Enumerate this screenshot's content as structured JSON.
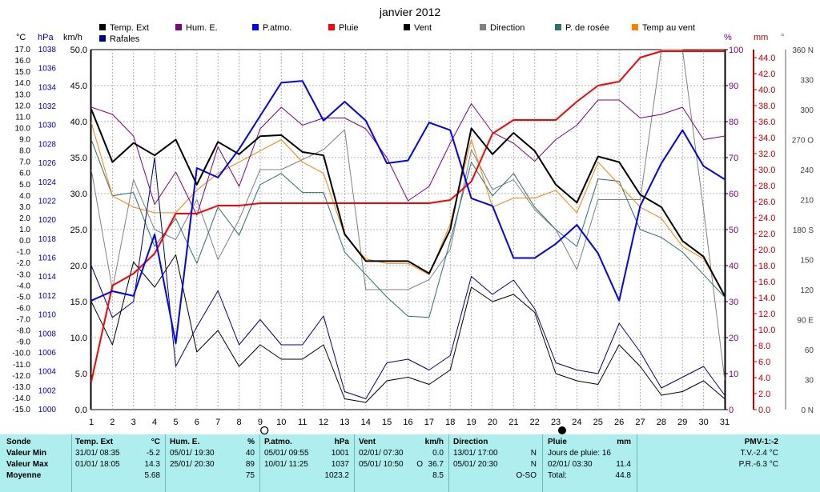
{
  "chart_data": {
    "type": "line",
    "title": "janvier 2012",
    "x": [
      1,
      2,
      3,
      4,
      5,
      6,
      7,
      8,
      9,
      10,
      11,
      12,
      13,
      14,
      15,
      16,
      17,
      18,
      19,
      20,
      21,
      22,
      23,
      24,
      25,
      26,
      27,
      28,
      29,
      30,
      31
    ],
    "axes": {
      "temp": {
        "unit": "°C",
        "min": -15,
        "max": 17,
        "step": 0.5,
        "color": "#000000"
      },
      "press": {
        "unit": "hPa",
        "min": 1000,
        "max": 1038,
        "step": 2,
        "color": "#0000c0"
      },
      "wind": {
        "unit": "km/h",
        "min": 0,
        "max": 50,
        "step": 5,
        "color": "#000000"
      },
      "hum": {
        "unit": "%",
        "min": 0,
        "max": 100,
        "step": 10,
        "color": "#800080"
      },
      "rain": {
        "unit": "mm",
        "min": 0,
        "max": 45,
        "step": 2,
        "color": "#c00000"
      },
      "dir": {
        "unit": "°",
        "ticks": [
          "0 N",
          "30",
          "60",
          "90 E",
          "120",
          "150",
          "180 S",
          "210",
          "240",
          "270 O",
          "300",
          "330",
          "360 N"
        ],
        "color": "#404040"
      }
    },
    "legend": [
      {
        "name": "Temp. Ext",
        "color": "#000000"
      },
      {
        "name": "Rafales",
        "color": "#000080"
      },
      {
        "name": "Hum. E.",
        "color": "#800080"
      },
      {
        "name": "P.atmo.",
        "color": "#0000ff"
      },
      {
        "name": "Pluie",
        "color": "#ff0000"
      },
      {
        "name": "Vent",
        "color": "#000000"
      },
      {
        "name": "Direction",
        "color": "#808080"
      },
      {
        "name": "P. de rosée",
        "color": "#2f6f6f"
      },
      {
        "name": "Temp au vent",
        "color": "#ff8000"
      }
    ],
    "series": [
      {
        "name": "Temp. Ext",
        "axis": "temp",
        "color": "#000000",
        "width": 2,
        "values": [
          11.7,
          7.0,
          8.7,
          7.6,
          9.0,
          5.0,
          8.8,
          7.7,
          9.3,
          9.4,
          7.9,
          7.6,
          0.6,
          -1.8,
          -1.8,
          -1.8,
          -2.9,
          1.0,
          10.0,
          7.7,
          9.6,
          8.0,
          5.0,
          3.4,
          7.5,
          7.0,
          4.1,
          3.0,
          0.0,
          -1.4,
          -4.9
        ]
      },
      {
        "name": "Rafales",
        "axis": "wind",
        "color": "#000080",
        "width": 1,
        "values": [
          20.0,
          12.8,
          15.0,
          35.0,
          6.0,
          11.5,
          16.5,
          9.0,
          12.5,
          9.0,
          9.0,
          13.0,
          2.5,
          1.5,
          6.5,
          7.0,
          5.5,
          7.5,
          18.5,
          16.0,
          18.0,
          14.0,
          6.5,
          5.5,
          5.0,
          12.0,
          8.0,
          3.0,
          4.5,
          6.0,
          2.0
        ]
      },
      {
        "name": "Vent",
        "axis": "wind",
        "color": "#000000",
        "width": 1,
        "values": [
          15.0,
          9.0,
          20.5,
          17.0,
          21.5,
          8.0,
          11.0,
          6.0,
          9.0,
          7.0,
          7.0,
          9.0,
          1.5,
          1.0,
          4.0,
          4.5,
          3.5,
          5.5,
          17.0,
          15.0,
          16.0,
          13.5,
          5.0,
          4.0,
          3.5,
          9.0,
          6.0,
          2.0,
          2.5,
          4.0,
          1.5
        ]
      },
      {
        "name": "Hum. E.",
        "axis": "hum",
        "color": "#800080",
        "width": 1,
        "values": [
          84,
          82,
          76,
          57,
          66,
          54,
          73,
          62,
          78,
          84,
          79,
          81,
          81,
          78,
          70,
          58,
          62,
          74,
          85,
          77,
          74,
          69,
          75,
          79,
          86,
          86,
          81,
          82,
          84,
          75,
          76
        ]
      },
      {
        "name": "P.atmo.",
        "axis": "press",
        "color": "#0000ff",
        "width": 2,
        "values": [
          1011.5,
          1012.5,
          1012.0,
          1018.5,
          1007.0,
          1025.5,
          1024.5,
          1027.5,
          1031.0,
          1034.5,
          1034.7,
          1030.5,
          1032.5,
          1030.5,
          1026.0,
          1026.3,
          1030.3,
          1029.5,
          1022.3,
          1021.5,
          1016.0,
          1016.0,
          1017.5,
          1019.5,
          1016.5,
          1011.5,
          1021.5,
          1026.0,
          1029.5,
          1025.7,
          1024.3
        ]
      },
      {
        "name": "Pluie",
        "axis": "rain",
        "color": "#ff0000",
        "width": 2,
        "values": [
          3.5,
          15.5,
          17.0,
          19.5,
          24.5,
          24.5,
          25.5,
          25.5,
          25.8,
          25.8,
          25.8,
          25.8,
          25.8,
          25.8,
          25.8,
          25.8,
          25.8,
          26.2,
          28.5,
          34.5,
          36.2,
          36.2,
          36.2,
          38.5,
          40.5,
          41.0,
          44.0,
          44.8,
          44.8,
          44.8,
          44.8
        ]
      },
      {
        "name": "Direction",
        "axis": "dir",
        "color": "#808080",
        "width": 1,
        "values": [
          240,
          120,
          230,
          180,
          170,
          210,
          150,
          190,
          240,
          240,
          250,
          260,
          280,
          120,
          120,
          120,
          130,
          160,
          260,
          220,
          230,
          200,
          180,
          140,
          210,
          210,
          210,
          360,
          360,
          200,
          30
        ]
      },
      {
        "name": "P. de rosée",
        "axis": "temp",
        "color": "#2f6f6f",
        "width": 1,
        "values": [
          9.0,
          4.0,
          4.3,
          -0.5,
          2.0,
          -2.0,
          3.0,
          0.5,
          5.0,
          6.0,
          4.3,
          4.3,
          -1.0,
          -3.0,
          -5.0,
          -6.7,
          -6.8,
          0,
          7,
          4.0,
          6.0,
          3.0,
          1.0,
          -0.5,
          5.5,
          5.3,
          1.0,
          0.3,
          -1.0,
          -3.0,
          -5.0
        ]
      },
      {
        "name": "Temp au vent",
        "axis": "temp",
        "color": "#ff8000",
        "width": 1,
        "values": [
          10.5,
          4.0,
          3.0,
          2.5,
          2.5,
          4.5,
          6.0,
          7.0,
          8.0,
          9.0,
          7.0,
          6.0,
          0.5,
          -1.6,
          -2.0,
          -2.0,
          -3.0,
          1.5,
          9.0,
          3.0,
          3.8,
          3.8,
          4.5,
          2.5,
          7.0,
          5.0,
          3.0,
          2.0,
          -0.5,
          -1.6,
          -4.9
        ]
      }
    ]
  },
  "markers": {
    "moon_full_day": 9.2,
    "moon_new_day": 23.3
  },
  "stats": {
    "sonde": {
      "header": "Sonde",
      "rows": [
        "Valeur Min",
        "Valeur Max",
        "Moyenne"
      ]
    },
    "temp": {
      "header": "Temp. Ext",
      "unit": "°C",
      "min_date": "31/01/  08:35",
      "min": "-5.2",
      "max_date": "01/01/  18:05",
      "max": "14.3",
      "avg": "5.68"
    },
    "hum": {
      "header": "Hum. E.",
      "unit": "%",
      "min_date": "05/01/  19:30",
      "min": "40",
      "max_date": "25/01/  20:30",
      "max": "89",
      "avg": "75"
    },
    "press": {
      "header": "P.atmo.",
      "unit": "hPa",
      "min_date": "05/01/  09:55",
      "min": "1001",
      "max_date": "10/01/  11:25",
      "max": "1037",
      "avg": "1023.2"
    },
    "vent": {
      "header": "Vent",
      "unit": "km/h",
      "min_date": "02/01/  07:30",
      "min": "0.0",
      "max_date": "05/01/  10:50",
      "max_dir": "O",
      "max": "36.7",
      "avg": "8.5"
    },
    "dir": {
      "header": "Direction",
      "min_date": "13/01/  17:00",
      "min": "N",
      "max_date": "05/01/  20:30",
      "max": "N",
      "avg": "O-SO"
    },
    "pluie": {
      "header": "Pluie",
      "unit": "mm",
      "row1": "Jours de pluie: 16",
      "row2_date": "02/01/  03:30",
      "row2": "11.4",
      "row3_label": "Total:",
      "row3": "44.8"
    },
    "pmv": {
      "header": "PMV-1:-2",
      "tv": "T.V.-2.4 °C",
      "pr": "P.R.-6.3 °C"
    }
  }
}
